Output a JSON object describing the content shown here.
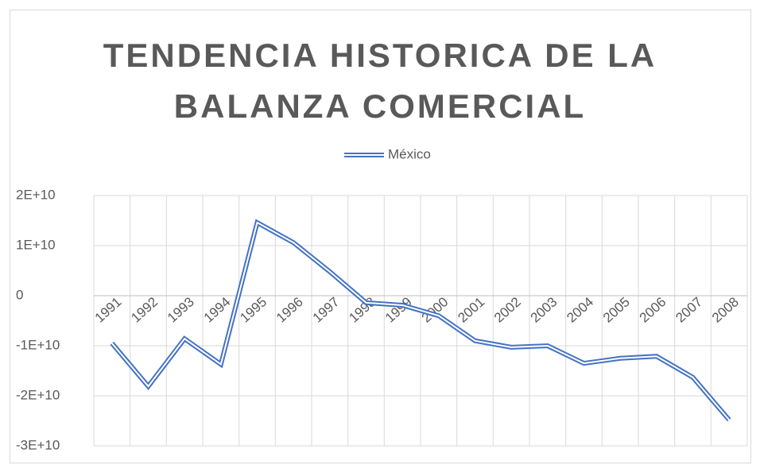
{
  "chart_data": {
    "type": "line",
    "title": "TENDENCIA HISTORICA DE LA BALANZA COMERCIAL",
    "categories": [
      "1991",
      "1992",
      "1993",
      "1994",
      "1995",
      "1996",
      "1997",
      "1998",
      "1999",
      "2000",
      "2001",
      "2002",
      "2003",
      "2004",
      "2005",
      "2006",
      "2007",
      "2008"
    ],
    "series": [
      {
        "name": "México",
        "color": "#4472c4",
        "values": [
          -9500000000,
          -18100000000,
          -8600000000,
          -13700000000,
          14600000000,
          10600000000,
          4800000000,
          -1400000000,
          -1900000000,
          -4000000000,
          -9000000000,
          -10300000000,
          -10000000000,
          -13500000000,
          -12500000000,
          -12100000000,
          -16300000000,
          -24800000000
        ]
      }
    ],
    "ylim": [
      -30000000000,
      20000000000
    ],
    "yticks": [
      {
        "value": -30000000000,
        "label": "-3E+10"
      },
      {
        "value": -20000000000,
        "label": "-2E+10"
      },
      {
        "value": -10000000000,
        "label": "-1E+10"
      },
      0,
      {
        "value": 10000000000,
        "label": "1E+10"
      },
      {
        "value": 20000000000,
        "label": "2E+10"
      }
    ],
    "grid": true,
    "legend": "top"
  }
}
